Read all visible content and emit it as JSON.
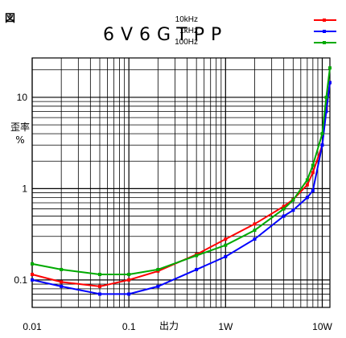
{
  "figure_label": "図",
  "chart_data": {
    "type": "line",
    "title": "6V6GTPP",
    "xlabel": "出力",
    "ylabel_lines": [
      "歪率",
      "%"
    ],
    "x_scale": "log",
    "y_scale": "log",
    "xlim": [
      0.01,
      12
    ],
    "ylim": [
      0.05,
      27
    ],
    "x_tick_labels": [
      {
        "value": 0.01,
        "label": "0.01"
      },
      {
        "value": 0.1,
        "label": "0.1"
      },
      {
        "value": 1,
        "label": "1W"
      },
      {
        "value": 10,
        "label": "10W"
      }
    ],
    "y_tick_labels": [
      {
        "value": 0.1,
        "label": "0.1"
      },
      {
        "value": 1,
        "label": "1"
      },
      {
        "value": 10,
        "label": "10"
      }
    ],
    "grid": true,
    "legend_position": "top-right",
    "series": [
      {
        "name": "10kHz",
        "color": "#ff0000",
        "points": [
          [
            0.01,
            0.115
          ],
          [
            0.02,
            0.095
          ],
          [
            0.05,
            0.085
          ],
          [
            0.1,
            0.1
          ],
          [
            0.2,
            0.125
          ],
          [
            0.5,
            0.19
          ],
          [
            1,
            0.28
          ],
          [
            2,
            0.41
          ],
          [
            4,
            0.64
          ],
          [
            5,
            0.76
          ],
          [
            7,
            1.1
          ],
          [
            8,
            1.5
          ],
          [
            10,
            3.0
          ],
          [
            11,
            7.5
          ],
          [
            12,
            14.5
          ]
        ]
      },
      {
        "name": "1kHz",
        "color": "#0000ff",
        "points": [
          [
            0.01,
            0.1
          ],
          [
            0.02,
            0.085
          ],
          [
            0.05,
            0.07
          ],
          [
            0.1,
            0.07
          ],
          [
            0.2,
            0.085
          ],
          [
            0.5,
            0.13
          ],
          [
            1,
            0.18
          ],
          [
            2,
            0.28
          ],
          [
            4,
            0.5
          ],
          [
            5,
            0.58
          ],
          [
            7,
            0.8
          ],
          [
            8,
            0.95
          ],
          [
            10,
            3.0
          ],
          [
            11,
            7.0
          ],
          [
            12,
            14.5
          ]
        ]
      },
      {
        "name": "100Hz",
        "color": "#00aa00",
        "points": [
          [
            0.01,
            0.15
          ],
          [
            0.02,
            0.13
          ],
          [
            0.05,
            0.115
          ],
          [
            0.1,
            0.115
          ],
          [
            0.2,
            0.13
          ],
          [
            0.5,
            0.185
          ],
          [
            1,
            0.24
          ],
          [
            2,
            0.35
          ],
          [
            4,
            0.6
          ],
          [
            5,
            0.75
          ],
          [
            7,
            1.25
          ],
          [
            8,
            1.8
          ],
          [
            10,
            4.0
          ],
          [
            11,
            10.0
          ],
          [
            12,
            21.0
          ]
        ]
      }
    ]
  }
}
